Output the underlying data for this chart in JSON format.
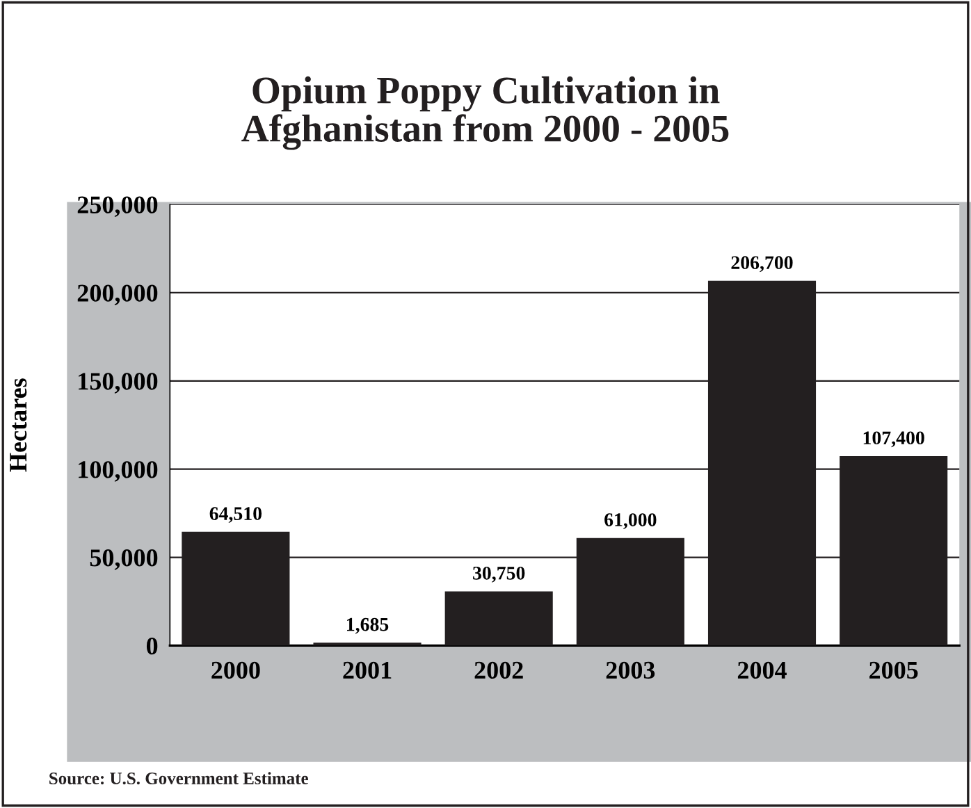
{
  "chart_data": {
    "type": "bar",
    "title": "Opium Poppy Cultivation in\nAfghanistan from 2000 - 2005",
    "ylabel": "Hectares",
    "categories": [
      "2000",
      "2001",
      "2002",
      "2003",
      "2004",
      "2005"
    ],
    "values": [
      64510,
      1685,
      30750,
      61000,
      206700,
      107400
    ],
    "value_labels": [
      "64,510",
      "1,685",
      "30,750",
      "61,000",
      "206,700",
      "107,400"
    ],
    "color": "#231f20",
    "ylim": [
      0,
      250000
    ],
    "yticks": [
      {
        "value": 0,
        "label": "0"
      },
      {
        "value": 50000,
        "label": "50,000"
      },
      {
        "value": 100000,
        "label": "100,000"
      },
      {
        "value": 150000,
        "label": "150,000"
      },
      {
        "value": 200000,
        "label": "200,000"
      },
      {
        "value": 250000,
        "label": "250,000"
      }
    ],
    "grid": "y",
    "annotations": [
      "Source: U.S. Government Estimate"
    ]
  }
}
